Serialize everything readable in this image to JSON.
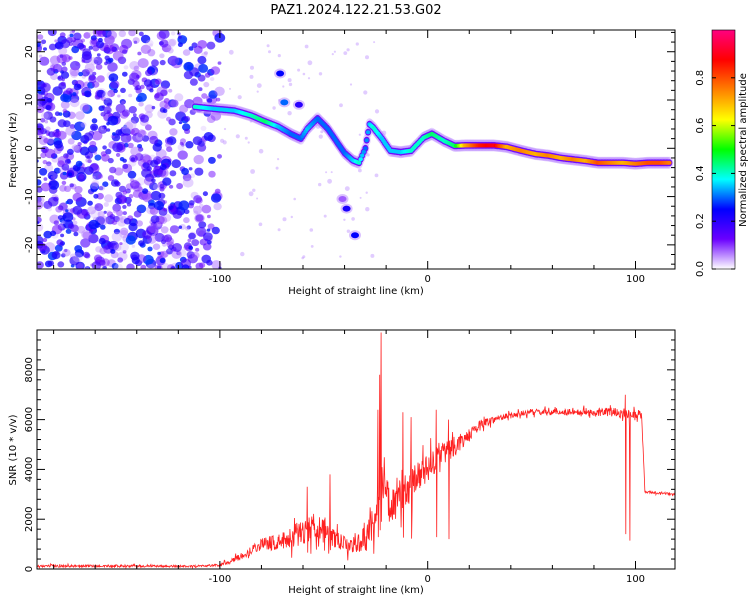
{
  "title": "PAZ1.2024.122.21.53.G02",
  "chart_data": [
    {
      "type": "heatmap",
      "xlabel": "Height of straight line (km)",
      "ylabel": "Frequency (Hz)",
      "xlim": [
        -188,
        119
      ],
      "ylim": [
        -25,
        24.5
      ],
      "xticks": [
        -100,
        0,
        100
      ],
      "yticks": [
        -20,
        -10,
        0,
        10,
        20
      ],
      "colorbar": {
        "label": "Normalized spectral amplitude",
        "range": [
          0,
          1
        ],
        "ticks": [
          0.0,
          0.2,
          0.4,
          0.6,
          0.8
        ],
        "colors": [
          "#ffffff",
          "#6a00ff",
          "#0000ff",
          "#00ffff",
          "#00ff00",
          "#ffff00",
          "#ff8000",
          "#ff0000",
          "#ff0080"
        ]
      },
      "ridge": [
        {
          "x": -112,
          "y": 8.6,
          "a": 0.4
        },
        {
          "x": -103,
          "y": 8.2,
          "a": 0.35
        },
        {
          "x": -93,
          "y": 7.8,
          "a": 0.35
        },
        {
          "x": -85,
          "y": 6.8,
          "a": 0.4
        },
        {
          "x": -78,
          "y": 5.5,
          "a": 0.45
        },
        {
          "x": -72,
          "y": 4.5,
          "a": 0.35
        },
        {
          "x": -66,
          "y": 3.0,
          "a": 0.3
        },
        {
          "x": -61,
          "y": 2.0,
          "a": 0.3
        },
        {
          "x": -58,
          "y": 4.0,
          "a": 0.35
        },
        {
          "x": -53,
          "y": 6.2,
          "a": 0.3
        },
        {
          "x": -48,
          "y": 4.0,
          "a": 0.3
        },
        {
          "x": -44,
          "y": 1.5,
          "a": 0.3
        },
        {
          "x": -40,
          "y": -1.0,
          "a": 0.3
        },
        {
          "x": -36,
          "y": -2.5,
          "a": 0.35
        },
        {
          "x": -33,
          "y": -3.0,
          "a": 0.4
        },
        {
          "x": -30,
          "y": 0.0,
          "a": 0.3
        },
        {
          "x": -28,
          "y": 5.0,
          "a": 0.35
        },
        {
          "x": -26,
          "y": 4.2,
          "a": 0.4
        },
        {
          "x": -22,
          "y": 2.0,
          "a": 0.35
        },
        {
          "x": -18,
          "y": -0.5,
          "a": 0.35
        },
        {
          "x": -13,
          "y": -0.8,
          "a": 0.35
        },
        {
          "x": -8,
          "y": -0.5,
          "a": 0.4
        },
        {
          "x": -2,
          "y": 2.2,
          "a": 0.4
        },
        {
          "x": 2,
          "y": 3.0,
          "a": 0.45
        },
        {
          "x": 8,
          "y": 1.5,
          "a": 0.4
        },
        {
          "x": 13,
          "y": 0.5,
          "a": 0.45
        },
        {
          "x": 18,
          "y": 0.6,
          "a": 0.7
        },
        {
          "x": 25,
          "y": 0.6,
          "a": 0.85
        },
        {
          "x": 32,
          "y": 0.6,
          "a": 0.9
        },
        {
          "x": 38,
          "y": 0.3,
          "a": 0.7
        },
        {
          "x": 45,
          "y": -0.5,
          "a": 0.75
        },
        {
          "x": 52,
          "y": -1.2,
          "a": 0.7
        },
        {
          "x": 58,
          "y": -1.5,
          "a": 0.75
        },
        {
          "x": 64,
          "y": -2.0,
          "a": 0.7
        },
        {
          "x": 70,
          "y": -2.3,
          "a": 0.75
        },
        {
          "x": 76,
          "y": -2.6,
          "a": 0.7
        },
        {
          "x": 82,
          "y": -3.0,
          "a": 0.8
        },
        {
          "x": 88,
          "y": -3.0,
          "a": 0.75
        },
        {
          "x": 94,
          "y": -3.0,
          "a": 0.7
        },
        {
          "x": 100,
          "y": -3.2,
          "a": 0.75
        },
        {
          "x": 106,
          "y": -3.0,
          "a": 0.8
        },
        {
          "x": 112,
          "y": -3.0,
          "a": 0.8
        },
        {
          "x": 117,
          "y": -3.0,
          "a": 0.75
        }
      ],
      "features": [
        {
          "x": -71,
          "y": 15.5,
          "a": 0.25
        },
        {
          "x": -69,
          "y": 9.5,
          "a": 0.3
        },
        {
          "x": -62,
          "y": 9.0,
          "a": 0.2
        },
        {
          "x": -39,
          "y": -12.5,
          "a": 0.22
        },
        {
          "x": -35,
          "y": -18.0,
          "a": 0.25
        },
        {
          "x": -41,
          "y": -10.5,
          "a": 0.08
        }
      ],
      "noise": {
        "xmin": -188,
        "xmax": -100,
        "ymin": -25,
        "ymax": 24.5,
        "amplitude_max": 0.25
      }
    },
    {
      "type": "line",
      "xlabel": "Height of straight line (km)",
      "ylabel": "SNR (10 * v/v)",
      "xlim": [
        -188,
        119
      ],
      "ylim": [
        0,
        9600
      ],
      "xticks": [
        -100,
        0,
        100
      ],
      "yticks": [
        0,
        2000,
        4000,
        6000,
        8000
      ],
      "color": "#ff2020",
      "envelope": [
        {
          "x": -188,
          "y": 120,
          "n": 80
        },
        {
          "x": -150,
          "y": 120,
          "n": 80
        },
        {
          "x": -115,
          "y": 110,
          "n": 60
        },
        {
          "x": -100,
          "y": 150,
          "n": 80
        },
        {
          "x": -90,
          "y": 500,
          "n": 200
        },
        {
          "x": -80,
          "y": 1000,
          "n": 400
        },
        {
          "x": -70,
          "y": 1100,
          "n": 600
        },
        {
          "x": -60,
          "y": 1500,
          "n": 900
        },
        {
          "x": -52,
          "y": 1800,
          "n": 1000
        },
        {
          "x": -45,
          "y": 1200,
          "n": 600
        },
        {
          "x": -38,
          "y": 900,
          "n": 500
        },
        {
          "x": -30,
          "y": 1200,
          "n": 800
        },
        {
          "x": -25,
          "y": 2200,
          "n": 1300
        },
        {
          "x": -22,
          "y": 3500,
          "n": 1500
        },
        {
          "x": -18,
          "y": 2500,
          "n": 1200
        },
        {
          "x": -12,
          "y": 2800,
          "n": 1100
        },
        {
          "x": -6,
          "y": 3600,
          "n": 1100
        },
        {
          "x": 0,
          "y": 4000,
          "n": 1000
        },
        {
          "x": 6,
          "y": 4600,
          "n": 900
        },
        {
          "x": 12,
          "y": 4900,
          "n": 700
        },
        {
          "x": 18,
          "y": 5200,
          "n": 500
        },
        {
          "x": 25,
          "y": 5800,
          "n": 300
        },
        {
          "x": 35,
          "y": 6100,
          "n": 200
        },
        {
          "x": 50,
          "y": 6300,
          "n": 200
        },
        {
          "x": 70,
          "y": 6300,
          "n": 200
        },
        {
          "x": 90,
          "y": 6300,
          "n": 300
        },
        {
          "x": 103,
          "y": 6200,
          "n": 300
        },
        {
          "x": 104.5,
          "y": 3100,
          "n": 80
        },
        {
          "x": 119,
          "y": 3000,
          "n": 80
        }
      ],
      "spikes": [
        {
          "x": -22.5,
          "y": 9500
        },
        {
          "x": -23,
          "y": 7800
        },
        {
          "x": -24,
          "y": 6400
        },
        {
          "x": -47,
          "y": 3800
        },
        {
          "x": -58,
          "y": 3300
        },
        {
          "x": -8,
          "y": 6100
        },
        {
          "x": 4,
          "y": 6400
        },
        {
          "x": 10,
          "y": 6000
        },
        {
          "x": -12,
          "y": 6300
        },
        {
          "x": 95,
          "y": 7000
        },
        {
          "x": 97,
          "y": 5700
        }
      ]
    }
  ]
}
